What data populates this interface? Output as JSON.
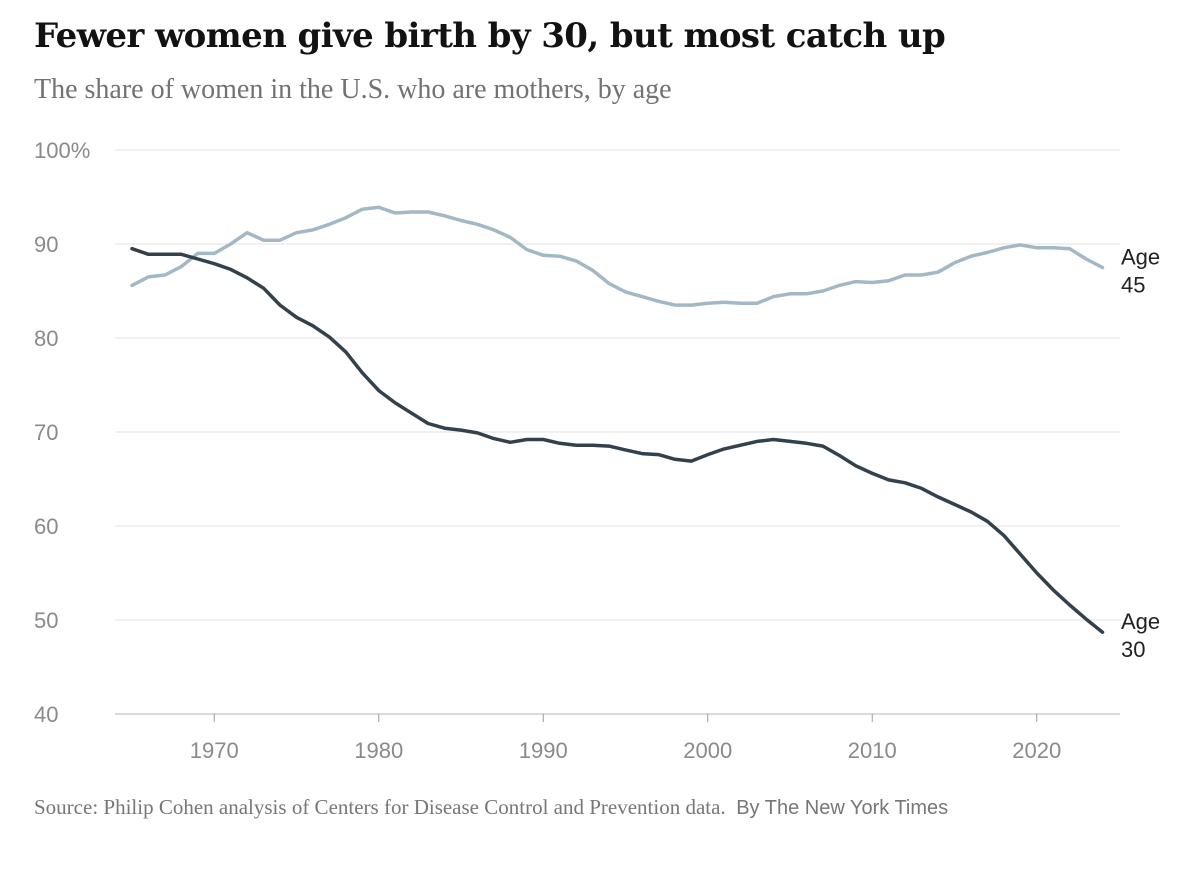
{
  "header": {
    "title": "Fewer women give birth by 30, but most catch up",
    "subtitle": "The share of women in the U.S. who are mothers, by age"
  },
  "footer": {
    "source": "Source:  Philip Cohen analysis of Centers for Disease Control and Prevention data.",
    "credit": "By The New York Times"
  },
  "chart_data": {
    "type": "line",
    "title": "Fewer women give birth by 30, but most catch up",
    "subtitle": "The share of women in the U.S. who are mothers, by age",
    "xlim": [
      1965,
      2024
    ],
    "ylim": [
      40,
      100
    ],
    "x_ticks": [
      1970,
      1980,
      1990,
      2000,
      2010,
      2020
    ],
    "y_ticks": [
      {
        "value": 100,
        "label": "100%"
      },
      {
        "value": 90,
        "label": "90"
      },
      {
        "value": 80,
        "label": "80"
      },
      {
        "value": 70,
        "label": "70"
      },
      {
        "value": 60,
        "label": "60"
      },
      {
        "value": 50,
        "label": "50"
      },
      {
        "value": 40,
        "label": "40"
      }
    ],
    "grid": true,
    "legend": "direct labels at line ends",
    "x": [
      1965,
      1966,
      1967,
      1968,
      1969,
      1970,
      1971,
      1972,
      1973,
      1974,
      1975,
      1976,
      1977,
      1978,
      1979,
      1980,
      1981,
      1982,
      1983,
      1984,
      1985,
      1986,
      1987,
      1988,
      1989,
      1990,
      1991,
      1992,
      1993,
      1994,
      1995,
      1996,
      1997,
      1998,
      1999,
      2000,
      2001,
      2002,
      2003,
      2004,
      2005,
      2006,
      2007,
      2008,
      2009,
      2010,
      2011,
      2012,
      2013,
      2014,
      2015,
      2016,
      2017,
      2018,
      2019,
      2020,
      2021,
      2022,
      2023,
      2024
    ],
    "series": [
      {
        "name": "Age 45",
        "label_lines": [
          "Age",
          "45"
        ],
        "color": "#a3b8c6",
        "values": [
          85.6,
          86.5,
          86.7,
          87.6,
          89.0,
          89.0,
          90.0,
          91.2,
          90.4,
          90.4,
          91.2,
          91.5,
          92.1,
          92.8,
          93.7,
          93.9,
          93.3,
          93.4,
          93.4,
          93.0,
          92.5,
          92.1,
          91.5,
          90.7,
          89.4,
          88.8,
          88.7,
          88.2,
          87.2,
          85.8,
          84.9,
          84.4,
          83.9,
          83.5,
          83.5,
          83.7,
          83.8,
          83.7,
          83.7,
          84.4,
          84.7,
          84.7,
          85.0,
          85.6,
          86.0,
          85.9,
          86.1,
          86.7,
          86.7,
          87.0,
          88.0,
          88.7,
          89.1,
          89.6,
          89.9,
          89.6,
          89.6,
          89.5,
          88.4,
          87.5
        ]
      },
      {
        "name": "Age 30",
        "label_lines": [
          "Age",
          "30"
        ],
        "color": "#33414d",
        "values": [
          89.5,
          88.9,
          88.9,
          88.9,
          88.4,
          87.9,
          87.3,
          86.4,
          85.3,
          83.5,
          82.2,
          81.3,
          80.1,
          78.5,
          76.3,
          74.4,
          73.1,
          72.0,
          70.9,
          70.4,
          70.2,
          69.9,
          69.3,
          68.9,
          69.2,
          69.2,
          68.8,
          68.6,
          68.6,
          68.5,
          68.1,
          67.7,
          67.6,
          67.1,
          66.9,
          67.6,
          68.2,
          68.6,
          69.0,
          69.2,
          69.0,
          68.8,
          68.5,
          67.5,
          66.4,
          65.6,
          64.9,
          64.6,
          64.0,
          63.1,
          62.3,
          61.5,
          60.5,
          59.0,
          57.0,
          55.0,
          53.2,
          51.6,
          50.1,
          48.7
        ]
      }
    ]
  }
}
